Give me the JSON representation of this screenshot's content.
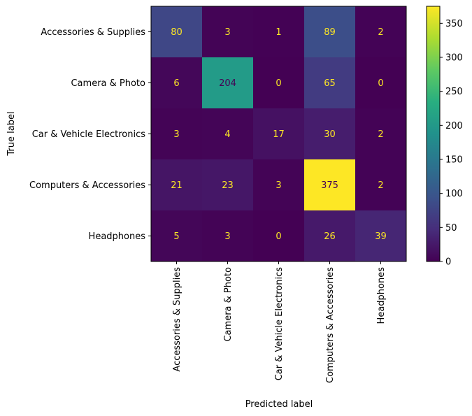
{
  "chart_data": {
    "type": "heatmap",
    "xlabel": "Predicted label",
    "ylabel": "True label",
    "x_categories": [
      "Accessories & Supplies",
      "Camera & Photo",
      "Car & Vehicle Electronics",
      "Computers & Accessories",
      "Headphones"
    ],
    "y_categories": [
      "Accessories & Supplies",
      "Camera & Photo",
      "Car & Vehicle Electronics",
      "Computers & Accessories",
      "Headphones"
    ],
    "values": [
      [
        80,
        3,
        1,
        89,
        2
      ],
      [
        6,
        204,
        0,
        65,
        0
      ],
      [
        3,
        4,
        17,
        30,
        2
      ],
      [
        21,
        23,
        3,
        375,
        2
      ],
      [
        5,
        3,
        0,
        26,
        39
      ]
    ],
    "colormap": "viridis",
    "vmin": 0,
    "vmax": 375,
    "colorbar_ticks": [
      0,
      50,
      100,
      150,
      200,
      250,
      300,
      350
    ],
    "grid": false
  }
}
